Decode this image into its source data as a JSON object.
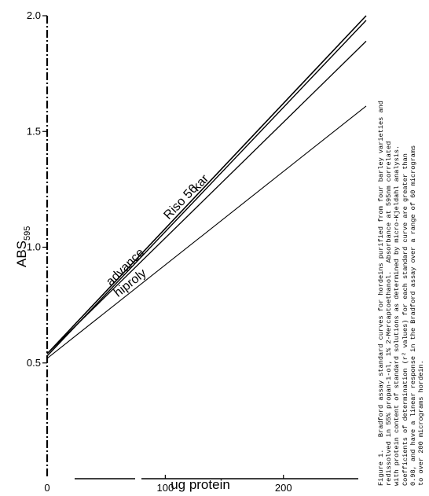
{
  "chart_data": {
    "type": "line",
    "xlabel": "ug protein",
    "ylabel_main": "ABS",
    "ylabel_sub": "595",
    "x_ticks": [
      {
        "value": 0,
        "label": "0"
      },
      {
        "value": 100,
        "label": "100"
      },
      {
        "value": 200,
        "label": "200"
      }
    ],
    "y_ticks": [
      {
        "value": 0.5,
        "label": "0.5"
      },
      {
        "value": 1.0,
        "label": "1.0"
      },
      {
        "value": 1.5,
        "label": "1.5"
      },
      {
        "value": 2.0,
        "label": "2.0"
      }
    ],
    "xlim": [
      0,
      270
    ],
    "ylim": [
      0.0,
      2.0
    ],
    "grid": false,
    "series": [
      {
        "name": "Riso 56",
        "x": [
          0,
          270
        ],
        "y": [
          0.54,
          2.0
        ]
      },
      {
        "name": "kar",
        "x": [
          0,
          270
        ],
        "y": [
          0.53,
          1.98
        ]
      },
      {
        "name": "advance",
        "x": [
          0,
          270
        ],
        "y": [
          0.54,
          1.89
        ]
      },
      {
        "name": "hiproly",
        "x": [
          0,
          270
        ],
        "y": [
          0.52,
          1.61
        ]
      }
    ]
  },
  "caption": {
    "figure_label": "Figure 1.",
    "lines": [
      "Bradford assay standard curves for hordeins purified from four barley varieties and",
      "redissolved in 55% propan-1-ol, 1% 2-Mercaptoethanol.  Absorbance at 595nm correlated",
      "with protein content of standard solutions as determined by micro-Kjeldahl analysis.",
      "Coefficients of determination (r² values) for each standard curve are greater than",
      "0.98, and have a linear response in the Bradford assay over a range of 60 micrograms",
      "to over 200 micrograms hordein."
    ]
  }
}
